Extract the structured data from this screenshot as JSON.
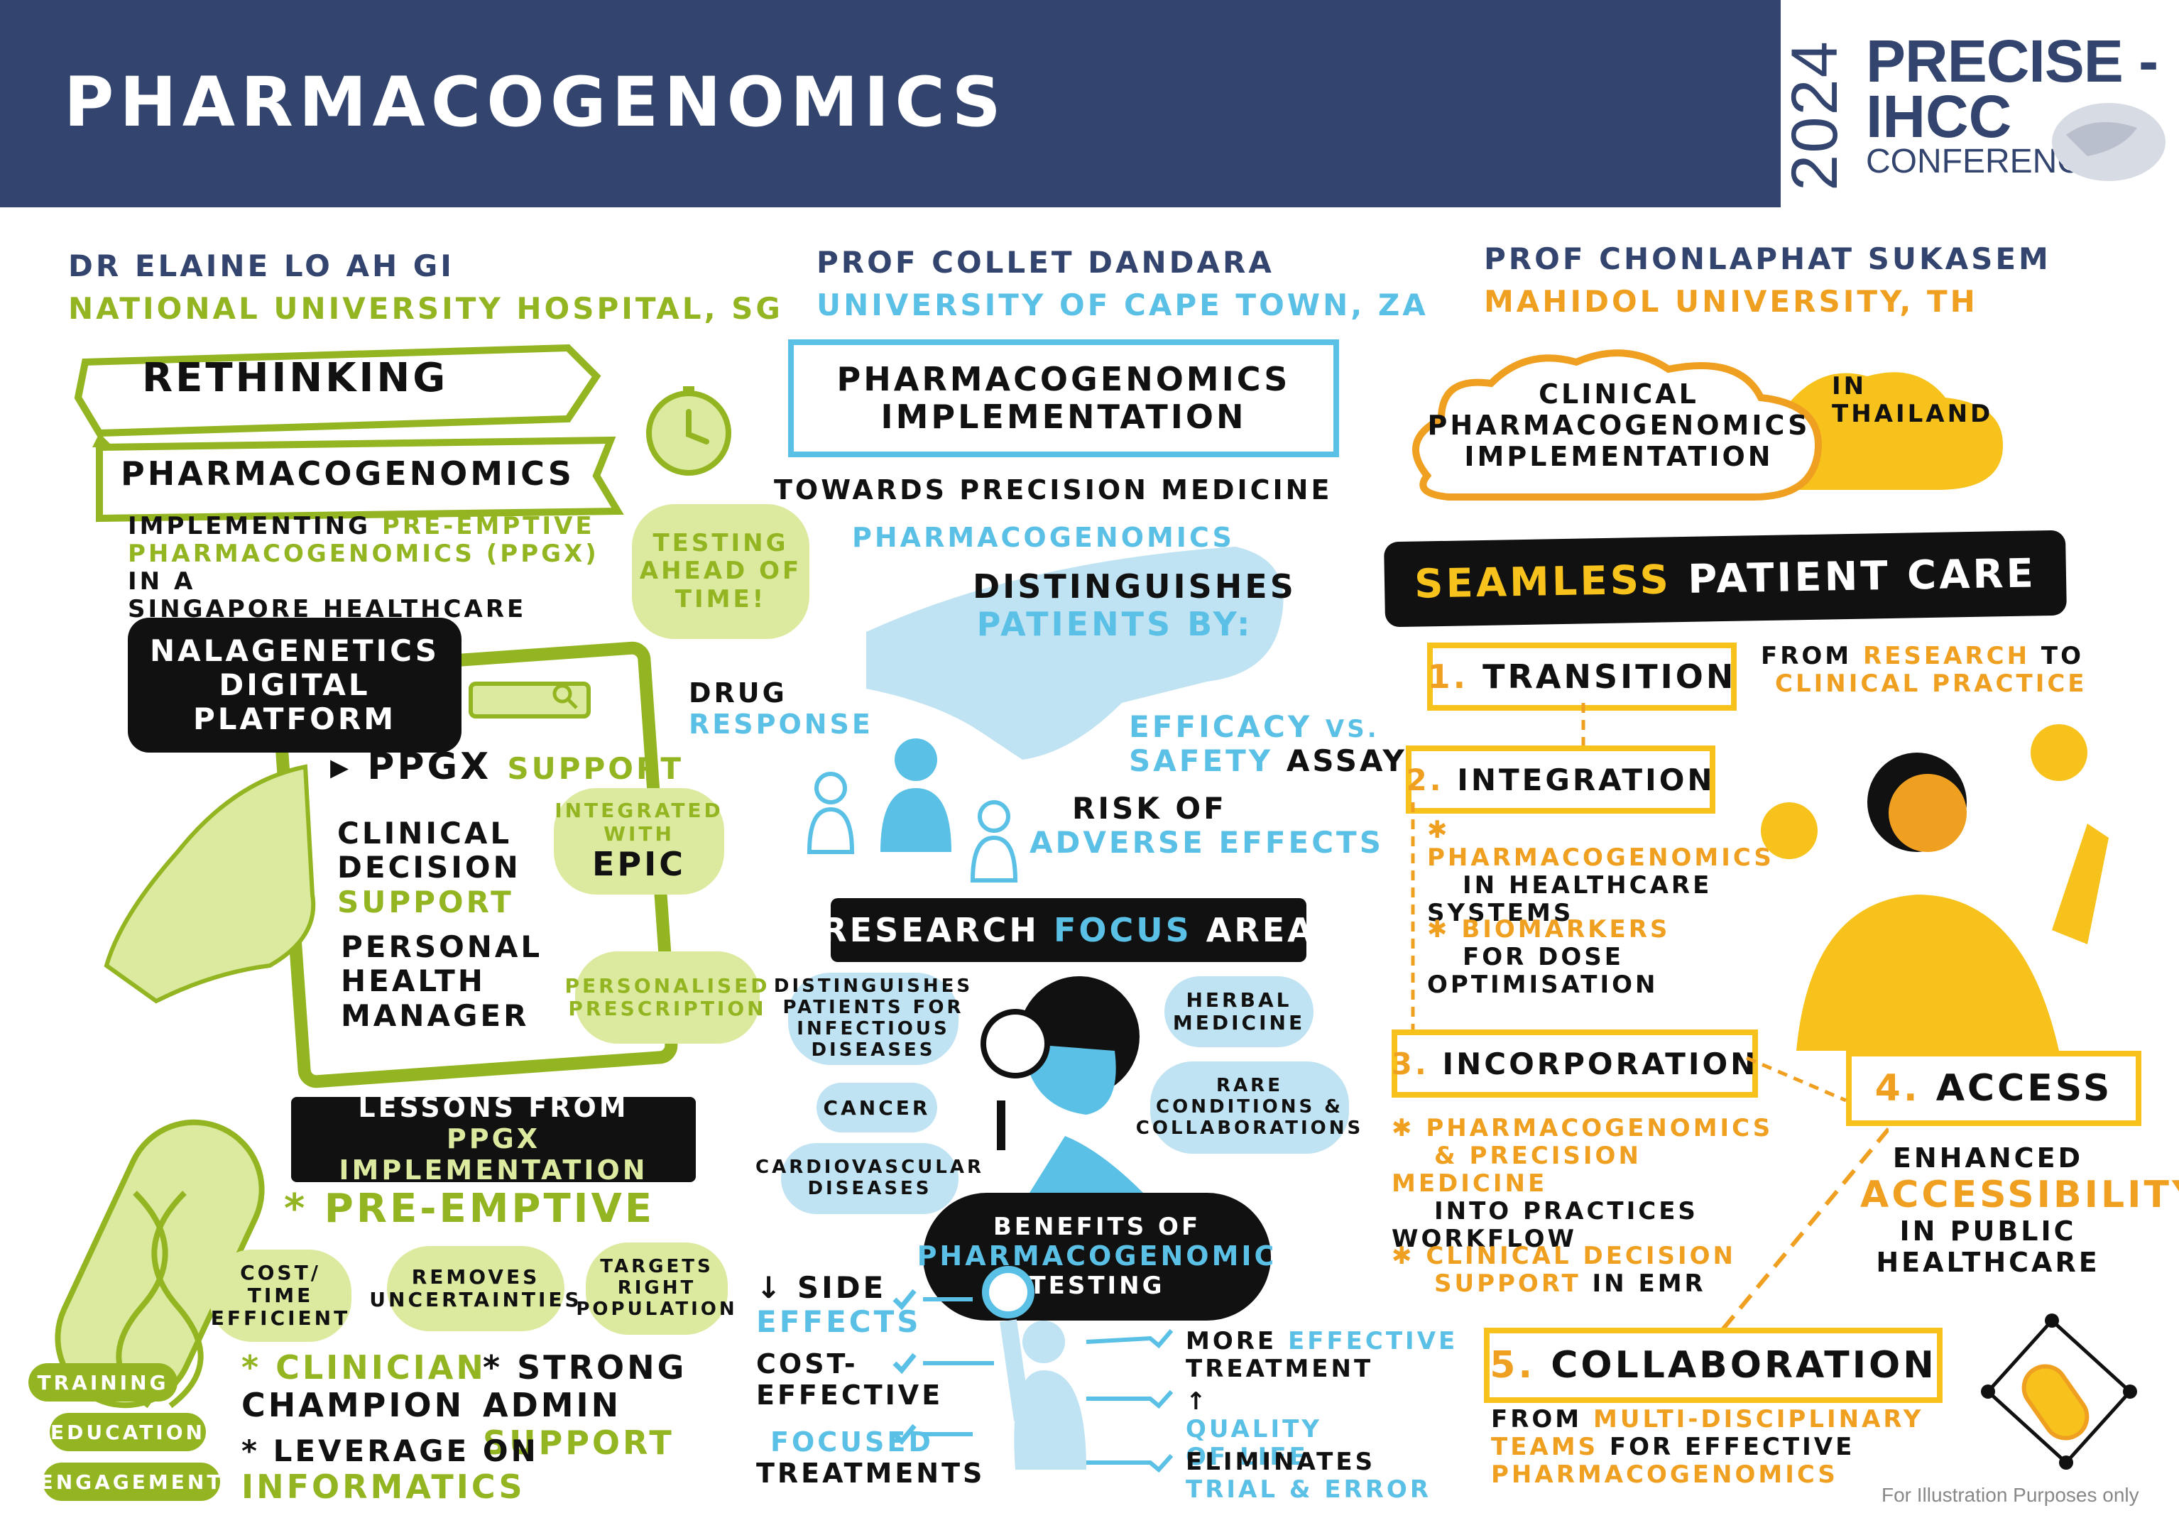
{
  "header": {
    "title": "PHARMACOGENOMICS",
    "logo": {
      "year": "2024",
      "line1": "PRECISE -",
      "line2": "IHCC",
      "line3": "CONFERENCE"
    }
  },
  "col1": {
    "speaker": "DR ELAINE LO AH GI",
    "affiliation": "NATIONAL UNIVERSITY HOSPITAL, SG",
    "banner1": "RETHINKING",
    "banner2": "PHARMACOGENOMICS",
    "desc_a": "IMPLEMENTING",
    "desc_b": "PRE-EMPTIVE",
    "desc_c": "PHARMACOGENOMICS (PPGX)",
    "desc_d": "IN A",
    "desc_e": "SINGAPORE HEALTHCARE SYSTEM",
    "testing": "TESTING AHEAD OF TIME!",
    "platform": "NALAGENETICS DIGITAL PLATFORM",
    "ppgx_a": "PPGX",
    "ppgx_b": "SUPPORT",
    "cds_a": "CLINICAL DECISION",
    "cds_b": "SUPPORT",
    "integrated_a": "INTEGRATED WITH",
    "integrated_b": "EPIC",
    "phm": "PERSONAL HEALTH MANAGER",
    "personalised": "PERSONALISED PRESCRIPTION",
    "lessons_a": "LESSONS FROM",
    "lessons_b": "PPGX IMPLEMENTATION",
    "preemptive": "* PRE-EMPTIVE",
    "bubble1": "COST/ TIME EFFICIENT",
    "bubble2": "REMOVES UNCERTAINTIES",
    "bubble3": "TARGETS RIGHT POPULATION",
    "clinician_a": "* CLINICIAN",
    "clinician_b": "CHAMPION",
    "admin_a": "* STRONG ADMIN",
    "admin_b": "SUPPORT",
    "leverage_a": "* LEVERAGE ON",
    "leverage_b": "INFORMATICS",
    "tags": [
      "TRAINING",
      "EDUCATION",
      "ENGAGEMENT"
    ]
  },
  "col2": {
    "speaker": "PROF COLLET DANDARA",
    "affiliation": "UNIVERSITY OF CAPE TOWN, ZA",
    "banner": "PHARMACOGENOMICS IMPLEMENTATION",
    "subtitle": "TOWARDS PRECISION MEDICINE",
    "pgx": "PHARMACOGENOMICS",
    "dist_a": "DISTINGUISHES",
    "dist_b": "PATIENTS BY:",
    "drug_a": "DRUG",
    "drug_b": "RESPONSE",
    "efficacy_a": "EFFICACY",
    "efficacy_b": "VS.",
    "efficacy_c": "SAFETY",
    "efficacy_d": "ASSAY",
    "risk_a": "RISK OF",
    "risk_b": "ADVERSE EFFECTS",
    "research_a": "RESEARCH",
    "research_b": "FOCUS",
    "research_c": "AREA",
    "infectious": "DISTINGUISHES PATIENTS FOR INFECTIOUS DISEASES",
    "cancer": "CANCER",
    "cardio": "CARDIOVASCULAR DISEASES",
    "herbal": "HERBAL MEDICINE",
    "rare": "RARE CONDITIONS & COLLABORATIONS",
    "benefits_a": "BENEFITS OF",
    "benefits_b": "PHARMACOGENOMIC",
    "benefits_c": "TESTING",
    "side_a": "↓ SIDE",
    "side_b": "EFFECTS",
    "cost": "COST- EFFECTIVE",
    "focused_a": "FOCUSED",
    "focused_b": "TREATMENTS",
    "more_a": "MORE",
    "more_b": "EFFECTIVE",
    "more_c": "TREATMENT",
    "quality_a": "↑",
    "quality_b": "QUALITY OF LIFE",
    "elim_a": "ELIMINATES",
    "elim_b": "TRIAL & ERROR"
  },
  "col3": {
    "speaker": "PROF CHONLAPHAT SUKASEM",
    "affiliation": "MAHIDOL UNIVERSITY, TH",
    "cloud": "CLINICAL PHARMACOGENOMICS IMPLEMENTATION",
    "cloud_side": "IN THAILAND",
    "seamless_a": "SEAMLESS",
    "seamless_b": "PATIENT CARE",
    "s1_num": "1.",
    "s1": "TRANSITION",
    "s1_desc_a": "FROM",
    "s1_desc_b": "RESEARCH",
    "s1_desc_c": "TO",
    "s1_desc_d": "CLINICAL PRACTICE",
    "s2_num": "2.",
    "s2": "INTEGRATION",
    "s2_b1a": "PHARMACOGENOMICS",
    "s2_b1b": "IN HEALTHCARE SYSTEMS",
    "s2_b2a": "BIOMARKERS",
    "s2_b2b": "FOR DOSE OPTIMISATION",
    "s3_num": "3.",
    "s3": "INCORPORATION",
    "s3_b1a": "PHARMACOGENOMICS",
    "s3_b1b": "& PRECISION MEDICINE",
    "s3_b1c": "INTO PRACTICES WORKFLOW",
    "s3_b2a": "CLINICAL DECISION",
    "s3_b2b": "SUPPORT",
    "s3_b2c": "IN EMR",
    "s4_num": "4.",
    "s4": "ACCESS",
    "s4_a": "ENHANCED",
    "s4_b": "ACCESSIBILITY",
    "s4_c": "IN PUBLIC HEALTHCARE",
    "s5_num": "5.",
    "s5": "COLLABORATION",
    "s5_a": "FROM",
    "s5_b": "MULTI-DISCIPLINARY",
    "s5_c": "TEAMS",
    "s5_d": "FOR EFFECTIVE",
    "s5_e": "PHARMACOGENOMICS"
  },
  "footer": "For Illustration Purposes only",
  "colors": {
    "navy": "#33456e",
    "green": "#93b521",
    "blue": "#5ac0e6",
    "orange": "#f0a020",
    "yellow": "#f6c21b"
  }
}
